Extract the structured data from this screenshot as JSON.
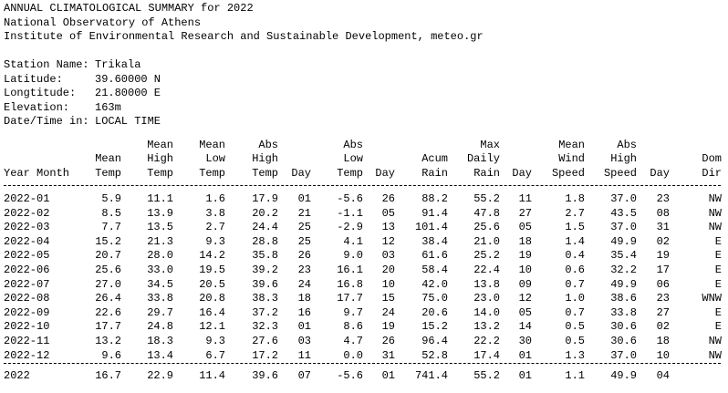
{
  "header": {
    "lines": [
      "ANNUAL CLIMATOLOGICAL SUMMARY for 2022",
      "National Observatory of Athens",
      "Institute of Environmental Research and Sustainable Development, meteo.gr"
    ]
  },
  "station": [
    {
      "label": "Station Name:",
      "value": "Trikala"
    },
    {
      "label": "Latitude:",
      "value": "39.60000 N"
    },
    {
      "label": "Longtitude:",
      "value": "21.80000 E"
    },
    {
      "label": "Elevation:",
      "value": "163m"
    },
    {
      "label": "Date/Time in:",
      "value": "LOCAL TIME"
    }
  ],
  "table": {
    "columns": [
      [
        "Year Month"
      ],
      [
        "Mean",
        "Temp"
      ],
      [
        "Mean",
        "High",
        "Temp"
      ],
      [
        "Mean",
        "Low",
        "Temp"
      ],
      [
        "Abs",
        "High",
        "Temp"
      ],
      [
        "Day"
      ],
      [
        "Abs",
        "Low",
        "Temp"
      ],
      [
        "Day"
      ],
      [
        "Acum",
        "Rain"
      ],
      [
        "Max",
        "Daily",
        "Rain"
      ],
      [
        "Day"
      ],
      [
        "Mean",
        "Wind",
        "Speed"
      ],
      [
        "Abs",
        "High",
        "Speed"
      ],
      [
        "Day"
      ],
      [
        "Dom",
        "Dir"
      ]
    ],
    "rows": [
      [
        "2022-01",
        "5.9",
        "11.1",
        "1.6",
        "17.9",
        "01",
        "-5.6",
        "26",
        "88.2",
        "55.2",
        "11",
        "1.8",
        "37.0",
        "23",
        "NW"
      ],
      [
        "2022-02",
        "8.5",
        "13.9",
        "3.8",
        "20.2",
        "21",
        "-1.1",
        "05",
        "91.4",
        "47.8",
        "27",
        "2.7",
        "43.5",
        "08",
        "NW"
      ],
      [
        "2022-03",
        "7.7",
        "13.5",
        "2.7",
        "24.4",
        "25",
        "-2.9",
        "13",
        "101.4",
        "25.6",
        "05",
        "1.5",
        "37.0",
        "31",
        "NW"
      ],
      [
        "2022-04",
        "15.2",
        "21.3",
        "9.3",
        "28.8",
        "25",
        "4.1",
        "12",
        "38.4",
        "21.0",
        "18",
        "1.4",
        "49.9",
        "02",
        "E"
      ],
      [
        "2022-05",
        "20.7",
        "28.0",
        "14.2",
        "35.8",
        "26",
        "9.0",
        "03",
        "61.6",
        "25.2",
        "19",
        "0.4",
        "35.4",
        "19",
        "E"
      ],
      [
        "2022-06",
        "25.6",
        "33.0",
        "19.5",
        "39.2",
        "23",
        "16.1",
        "20",
        "58.4",
        "22.4",
        "10",
        "0.6",
        "32.2",
        "17",
        "E"
      ],
      [
        "2022-07",
        "27.0",
        "34.5",
        "20.5",
        "39.6",
        "24",
        "16.8",
        "10",
        "42.0",
        "13.8",
        "09",
        "0.7",
        "49.9",
        "06",
        "E"
      ],
      [
        "2022-08",
        "26.4",
        "33.8",
        "20.8",
        "38.3",
        "18",
        "17.7",
        "15",
        "75.0",
        "23.0",
        "12",
        "1.0",
        "38.6",
        "23",
        "WNW"
      ],
      [
        "2022-09",
        "22.6",
        "29.7",
        "16.4",
        "37.2",
        "16",
        "9.7",
        "24",
        "20.6",
        "14.0",
        "05",
        "0.7",
        "33.8",
        "27",
        "E"
      ],
      [
        "2022-10",
        "17.7",
        "24.8",
        "12.1",
        "32.3",
        "01",
        "8.6",
        "19",
        "15.2",
        "13.2",
        "14",
        "0.5",
        "30.6",
        "02",
        "E"
      ],
      [
        "2022-11",
        "13.2",
        "18.3",
        "9.3",
        "27.6",
        "03",
        "4.7",
        "26",
        "96.4",
        "22.2",
        "30",
        "0.5",
        "30.6",
        "18",
        "NW"
      ],
      [
        "2022-12",
        "9.6",
        "13.4",
        "6.7",
        "17.2",
        "11",
        "0.0",
        "31",
        "52.8",
        "17.4",
        "01",
        "1.3",
        "37.0",
        "10",
        "NW"
      ]
    ],
    "summary": [
      "2022",
      "16.7",
      "22.9",
      "11.4",
      "39.6",
      "07",
      "-5.6",
      "01",
      "741.4",
      "55.2",
      "01",
      "1.1",
      "49.9",
      "04"
    ]
  }
}
